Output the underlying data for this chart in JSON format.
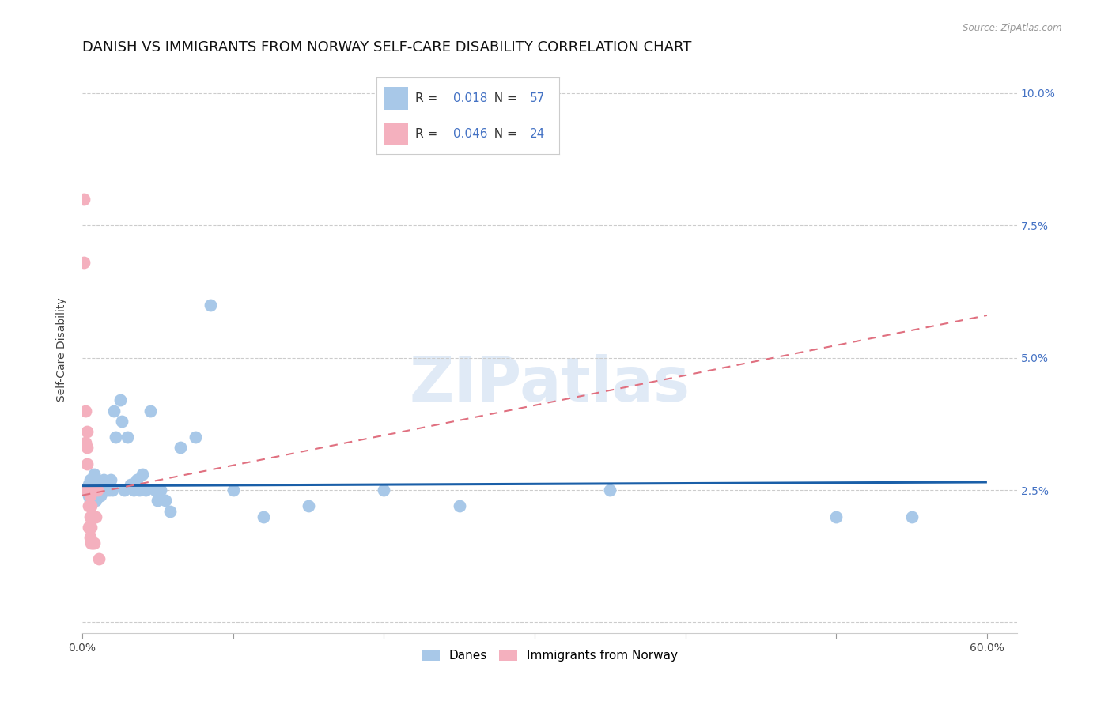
{
  "title": "DANISH VS IMMIGRANTS FROM NORWAY SELF-CARE DISABILITY CORRELATION CHART",
  "source": "Source: ZipAtlas.com",
  "ylabel": "Self-Care Disability",
  "watermark": "ZIPatlas",
  "xlim": [
    0.0,
    0.62
  ],
  "ylim": [
    -0.002,
    0.105
  ],
  "xticks": [
    0.0,
    0.1,
    0.2,
    0.3,
    0.4,
    0.5,
    0.6
  ],
  "xticklabels": [
    "0.0%",
    "",
    "",
    "",
    "",
    "",
    "60.0%"
  ],
  "yticks": [
    0.0,
    0.025,
    0.05,
    0.075,
    0.1
  ],
  "yticklabels_right": [
    "",
    "2.5%",
    "5.0%",
    "7.5%",
    "10.0%"
  ],
  "danes_R": 0.018,
  "danes_N": 57,
  "norway_R": 0.046,
  "norway_N": 24,
  "danes_color": "#a8c8e8",
  "norway_color": "#f4b0be",
  "danes_line_color": "#1a5fa8",
  "norway_line_color": "#e07080",
  "danes_x": [
    0.003,
    0.004,
    0.004,
    0.005,
    0.005,
    0.005,
    0.006,
    0.006,
    0.007,
    0.007,
    0.008,
    0.008,
    0.008,
    0.009,
    0.009,
    0.01,
    0.01,
    0.011,
    0.012,
    0.013,
    0.014,
    0.015,
    0.015,
    0.016,
    0.017,
    0.018,
    0.019,
    0.02,
    0.021,
    0.022,
    0.025,
    0.026,
    0.028,
    0.03,
    0.032,
    0.034,
    0.036,
    0.038,
    0.04,
    0.042,
    0.045,
    0.048,
    0.05,
    0.052,
    0.055,
    0.058,
    0.065,
    0.075,
    0.085,
    0.1,
    0.12,
    0.15,
    0.2,
    0.25,
    0.35,
    0.5,
    0.55
  ],
  "danes_y": [
    0.025,
    0.024,
    0.026,
    0.023,
    0.025,
    0.027,
    0.024,
    0.026,
    0.025,
    0.026,
    0.024,
    0.025,
    0.028,
    0.025,
    0.023,
    0.025,
    0.026,
    0.025,
    0.024,
    0.025,
    0.027,
    0.025,
    0.026,
    0.025,
    0.026,
    0.025,
    0.027,
    0.025,
    0.04,
    0.035,
    0.042,
    0.038,
    0.025,
    0.035,
    0.026,
    0.025,
    0.027,
    0.025,
    0.028,
    0.025,
    0.04,
    0.025,
    0.023,
    0.025,
    0.023,
    0.021,
    0.033,
    0.035,
    0.06,
    0.025,
    0.02,
    0.022,
    0.025,
    0.022,
    0.025,
    0.02,
    0.02
  ],
  "norway_x": [
    0.001,
    0.001,
    0.002,
    0.002,
    0.003,
    0.003,
    0.003,
    0.003,
    0.004,
    0.004,
    0.004,
    0.005,
    0.005,
    0.005,
    0.006,
    0.006,
    0.006,
    0.007,
    0.007,
    0.008,
    0.008,
    0.009,
    0.01,
    0.011
  ],
  "norway_y": [
    0.08,
    0.068,
    0.04,
    0.034,
    0.036,
    0.033,
    0.03,
    0.025,
    0.025,
    0.022,
    0.018,
    0.024,
    0.02,
    0.016,
    0.022,
    0.018,
    0.015,
    0.015,
    0.025,
    0.02,
    0.015,
    0.02,
    0.025,
    0.012
  ],
  "danes_trendline": [
    0.0,
    0.6,
    0.0258,
    0.0265
  ],
  "norway_trendline": [
    0.0,
    0.6,
    0.024,
    0.058
  ],
  "grid_color": "#cccccc",
  "background_color": "#ffffff",
  "title_fontsize": 13,
  "axis_label_fontsize": 10,
  "tick_fontsize": 10,
  "legend_fontsize": 11
}
